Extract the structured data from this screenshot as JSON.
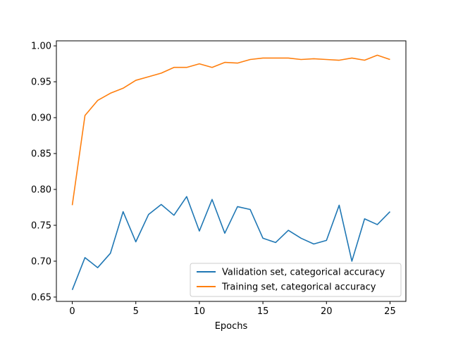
{
  "chart_data": {
    "type": "line",
    "title": "",
    "xlabel": "Epochs",
    "ylabel": "",
    "xlim": [
      -1.25,
      26.25
    ],
    "ylim": [
      0.644,
      1.007
    ],
    "grid": false,
    "legend_position": "lower-right",
    "x_ticks": [
      0,
      5,
      10,
      15,
      20,
      25
    ],
    "y_ticks": [
      0.65,
      0.7,
      0.75,
      0.8,
      0.85,
      0.9,
      0.95,
      1.0
    ],
    "x_tick_labels": [
      "0",
      "5",
      "10",
      "15",
      "20",
      "25"
    ],
    "y_tick_labels": [
      "0.65",
      "0.70",
      "0.75",
      "0.80",
      "0.85",
      "0.90",
      "0.95",
      "1.00"
    ],
    "x": [
      0,
      1,
      2,
      3,
      4,
      5,
      6,
      7,
      8,
      9,
      10,
      11,
      12,
      13,
      14,
      15,
      16,
      17,
      18,
      19,
      20,
      21,
      22,
      23,
      24,
      25
    ],
    "series": [
      {
        "name": "Validation set, categorical accuracy",
        "color": "#1f77b4",
        "values": [
          0.66,
          0.705,
          0.691,
          0.711,
          0.769,
          0.727,
          0.765,
          0.779,
          0.764,
          0.79,
          0.742,
          0.786,
          0.739,
          0.776,
          0.772,
          0.732,
          0.726,
          0.743,
          0.732,
          0.724,
          0.729,
          0.778,
          0.7,
          0.759,
          0.751,
          0.769
        ]
      },
      {
        "name": "Training set, categorical accuracy",
        "color": "#ff7f0e",
        "values": [
          0.778,
          0.903,
          0.924,
          0.934,
          0.941,
          0.952,
          0.957,
          0.962,
          0.97,
          0.97,
          0.975,
          0.97,
          0.977,
          0.976,
          0.981,
          0.983,
          0.983,
          0.983,
          0.981,
          0.982,
          0.981,
          0.98,
          0.983,
          0.98,
          0.987,
          0.981
        ]
      }
    ]
  }
}
